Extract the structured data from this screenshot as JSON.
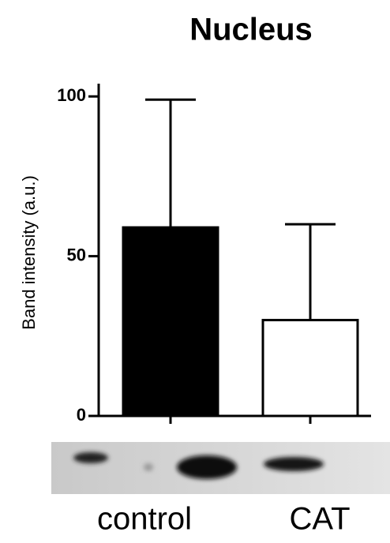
{
  "chart_data": {
    "type": "bar",
    "title": "Nucleus",
    "y_label": "Band intensity (a.u.)",
    "categories": [
      "control",
      "CAT"
    ],
    "values": [
      59,
      30
    ],
    "errors": [
      40,
      30
    ],
    "colors": [
      "#000000",
      "#ffffff"
    ],
    "edge_color": "#000000",
    "ylim": [
      0,
      104
    ],
    "yticks": [
      0,
      50,
      100
    ],
    "grid": false
  }
}
